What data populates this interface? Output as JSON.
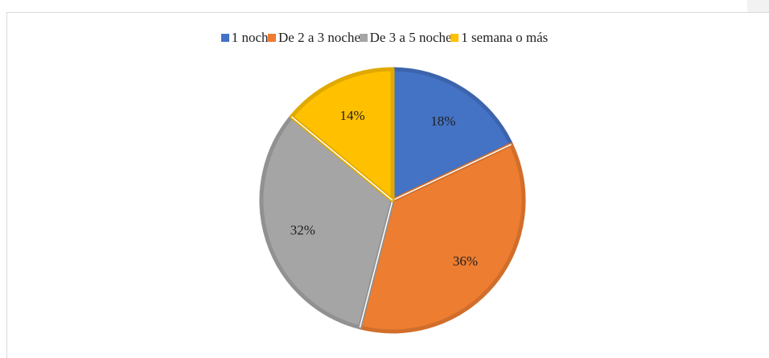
{
  "chart_data": {
    "type": "pie",
    "title": "",
    "legend_position": "top",
    "slices": [
      {
        "label": "1 noche",
        "value": 18,
        "value_label": "18%",
        "color": "#4472c4"
      },
      {
        "label": "De 2 a 3 noches",
        "value": 36,
        "value_label": "36%",
        "color": "#ed7d31"
      },
      {
        "label": "De 3 a 5 noches",
        "value": 32,
        "value_label": "32%",
        "color": "#a5a5a5"
      },
      {
        "label": "1 semana o más",
        "value": 14,
        "value_label": "14%",
        "color": "#ffc000"
      }
    ]
  }
}
